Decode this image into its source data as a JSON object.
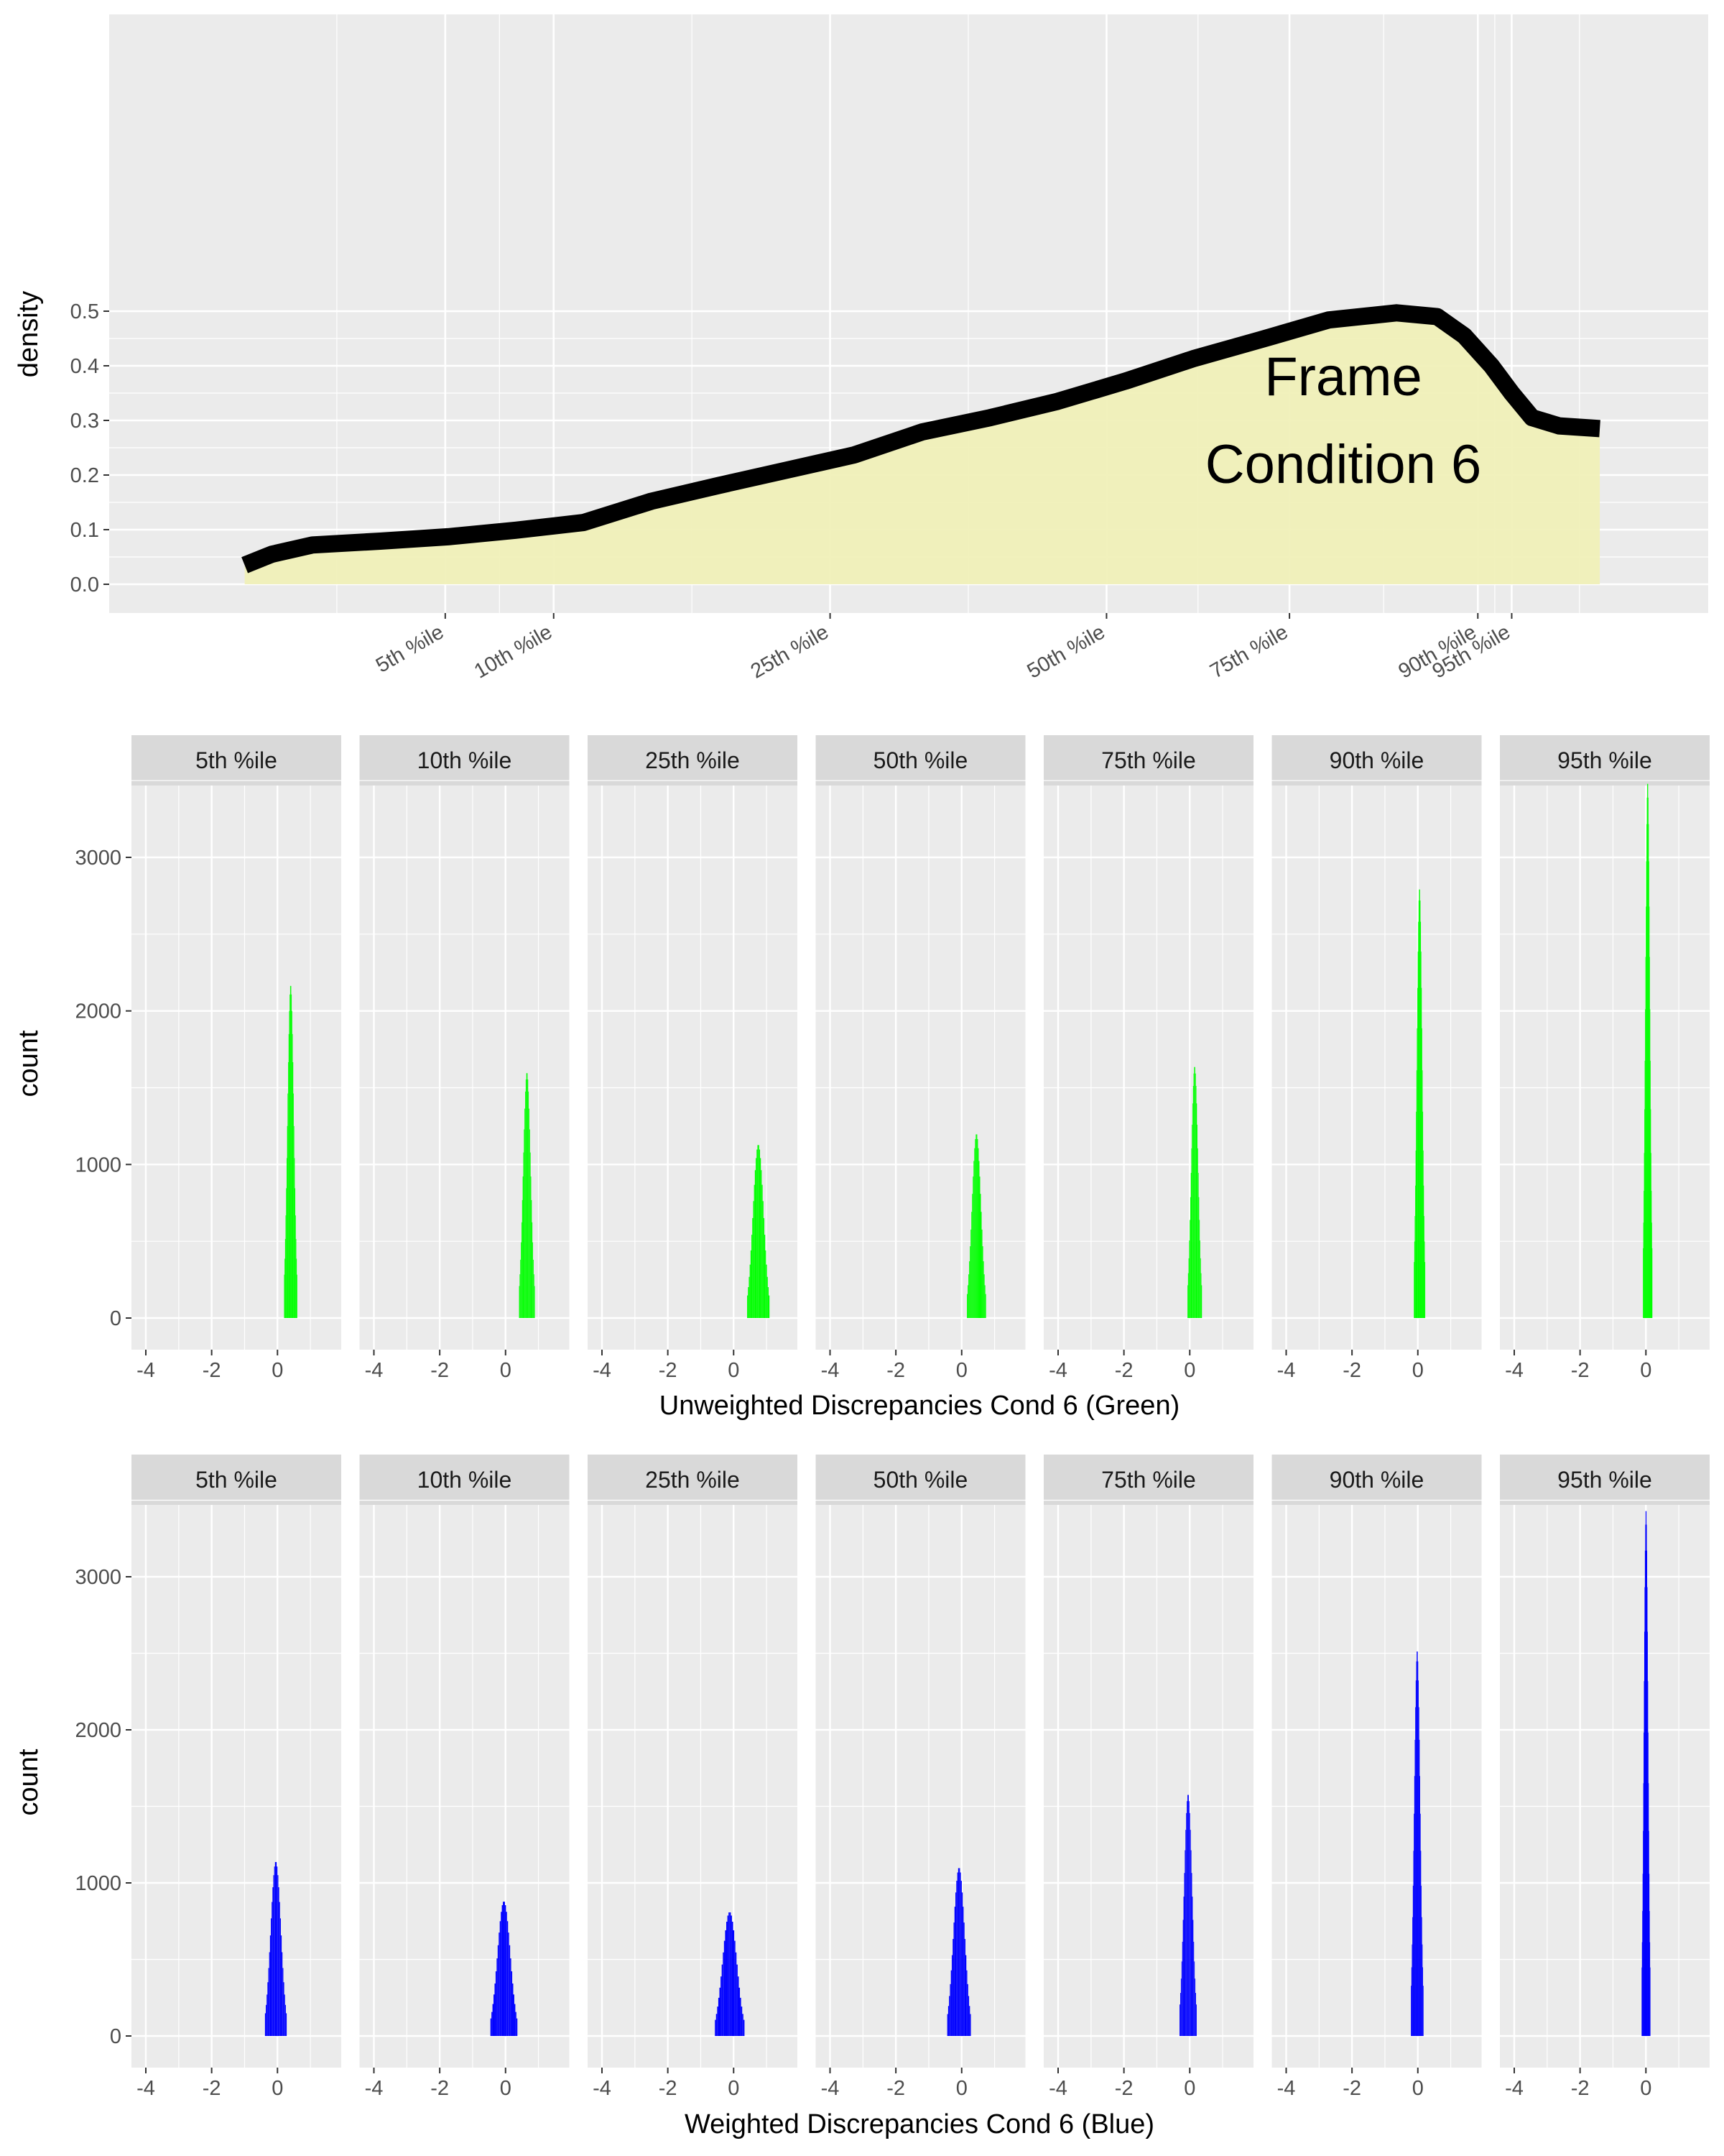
{
  "colors": {
    "panel_bg": "#ebebeb",
    "grid": "#ffffff",
    "strip_bg": "#d9d9d9",
    "density_fill": "#f0f0b8",
    "density_line": "#000000",
    "unweighted_bars": "#00ff00",
    "weighted_bars": "#0000ff"
  },
  "chart_data": [
    {
      "type": "area",
      "ylabel": "density",
      "annotation": [
        "Frame",
        "Condition 6"
      ],
      "ylim": [
        0,
        0.5
      ],
      "y_ticks": [
        "0.0",
        "0.1",
        "0.2",
        "0.3",
        "0.4",
        "0.5"
      ],
      "percentile_ticks": [
        "5th %ile",
        "10th %ile",
        "25th %ile",
        "50th %ile",
        "75th %ile",
        "90th %ile",
        "95th %ile"
      ],
      "percentile_positions": [
        0.148,
        0.228,
        0.432,
        0.636,
        0.771,
        0.91,
        0.935
      ],
      "curve": {
        "x": [
          0.0,
          0.02,
          0.05,
          0.1,
          0.15,
          0.2,
          0.25,
          0.3,
          0.35,
          0.4,
          0.45,
          0.5,
          0.55,
          0.6,
          0.65,
          0.7,
          0.75,
          0.8,
          0.85,
          0.88,
          0.9,
          0.92,
          0.935,
          0.95,
          0.97,
          1.0
        ],
        "y": [
          0.035,
          0.055,
          0.072,
          0.079,
          0.087,
          0.099,
          0.113,
          0.152,
          0.181,
          0.209,
          0.237,
          0.279,
          0.305,
          0.335,
          0.372,
          0.413,
          0.448,
          0.484,
          0.497,
          0.49,
          0.455,
          0.4,
          0.35,
          0.305,
          0.29,
          0.285
        ]
      }
    },
    {
      "type": "bar",
      "xlabel": "Unweighted Discrepancies Cond 6 (Green)",
      "ylabel": "count",
      "xlim": [
        -4,
        1.5
      ],
      "ylim": [
        0,
        3500
      ],
      "x_ticks": [
        "-4",
        "-2",
        "0"
      ],
      "y_ticks": [
        "0",
        "1000",
        "2000",
        "3000"
      ],
      "panels": [
        {
          "label": "5th %ile",
          "center": 0.4,
          "width": 0.4,
          "peak": 2170
        },
        {
          "label": "10th %ile",
          "center": 0.65,
          "width": 0.48,
          "peak": 1600
        },
        {
          "label": "25th %ile",
          "center": 0.75,
          "width": 0.68,
          "peak": 1130
        },
        {
          "label": "50th %ile",
          "center": 0.45,
          "width": 0.58,
          "peak": 1200
        },
        {
          "label": "75th %ile",
          "center": 0.15,
          "width": 0.44,
          "peak": 1640
        },
        {
          "label": "90th %ile",
          "center": 0.05,
          "width": 0.34,
          "peak": 2800
        },
        {
          "label": "95th %ile",
          "center": 0.05,
          "width": 0.28,
          "peak": 3490
        }
      ]
    },
    {
      "type": "bar",
      "xlabel": "Weighted Discrepancies Cond 6 (Blue)",
      "ylabel": "count",
      "xlim": [
        -4,
        1.5
      ],
      "ylim": [
        0,
        3500
      ],
      "x_ticks": [
        "-4",
        "-2",
        "0"
      ],
      "y_ticks": [
        "0",
        "1000",
        "2000",
        "3000"
      ],
      "panels": [
        {
          "label": "5th %ile",
          "center": -0.05,
          "width": 0.66,
          "peak": 1140
        },
        {
          "label": "10th %ile",
          "center": -0.05,
          "width": 0.82,
          "peak": 880
        },
        {
          "label": "25th %ile",
          "center": -0.12,
          "width": 0.9,
          "peak": 810
        },
        {
          "label": "50th %ile",
          "center": -0.08,
          "width": 0.72,
          "peak": 1100
        },
        {
          "label": "75th %ile",
          "center": -0.05,
          "width": 0.52,
          "peak": 1580
        },
        {
          "label": "90th %ile",
          "center": -0.02,
          "width": 0.38,
          "peak": 2520
        },
        {
          "label": "95th %ile",
          "center": 0.0,
          "width": 0.26,
          "peak": 3440
        }
      ]
    }
  ]
}
